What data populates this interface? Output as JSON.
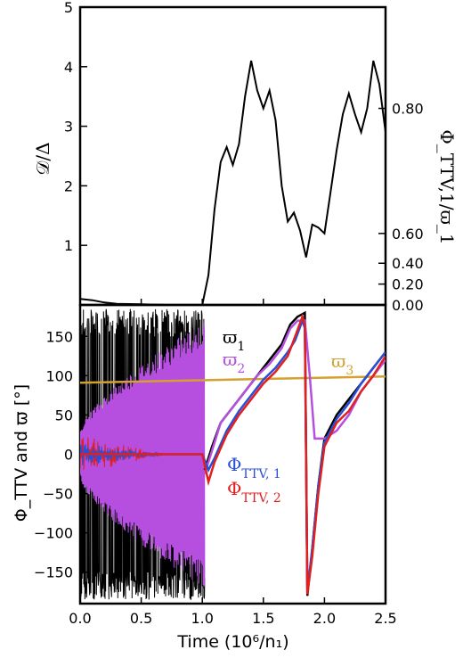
{
  "chart_data": [
    {
      "type": "line",
      "panel": "top",
      "ylabel": "𝒟/Δ",
      "ylabel_right": "Φ_TTV,1/ϖ_1",
      "ylim": [
        0,
        5
      ],
      "xlim": [
        0,
        2.5
      ],
      "y_ticks": [
        "1",
        "2",
        "3",
        "4",
        "5"
      ],
      "y_ticks_right": [
        "0.00",
        "0.20",
        "0.40",
        "0.60",
        "0.80"
      ],
      "y_ticks_right_pos": [
        0.0,
        0.35,
        0.7,
        1.2,
        3.3
      ],
      "series": [
        {
          "color": "#000000",
          "x": [
            0.0,
            0.1,
            0.2,
            0.3,
            0.5,
            0.7,
            0.9,
            1.0,
            1.05,
            1.1,
            1.15,
            1.2,
            1.25,
            1.3,
            1.35,
            1.4,
            1.45,
            1.5,
            1.55,
            1.6,
            1.65,
            1.7,
            1.75,
            1.8,
            1.85,
            1.9,
            1.95,
            2.0,
            2.05,
            2.1,
            2.15,
            2.2,
            2.25,
            2.3,
            2.35,
            2.4,
            2.45,
            2.5
          ],
          "y": [
            0.1,
            0.08,
            0.04,
            0.02,
            0.01,
            0.0,
            0.0,
            0.0,
            0.5,
            1.6,
            2.4,
            2.65,
            2.35,
            2.7,
            3.5,
            4.1,
            3.6,
            3.3,
            3.6,
            3.1,
            2.0,
            1.4,
            1.55,
            1.25,
            0.8,
            1.35,
            1.3,
            1.2,
            1.9,
            2.6,
            3.2,
            3.55,
            3.2,
            2.9,
            3.3,
            4.1,
            3.7,
            2.9
          ]
        }
      ]
    },
    {
      "type": "line",
      "panel": "bottom",
      "xlabel": "Time (10⁶/n₁)",
      "ylabel": "Φ_TTV and ϖ [°]",
      "xlim": [
        0,
        2.5
      ],
      "ylim": [
        -190,
        190
      ],
      "x_ticks": [
        "0.0",
        "0.5",
        "1.0",
        "1.5",
        "2.0",
        "2.5"
      ],
      "y_ticks": [
        "150",
        "100",
        "50",
        "0",
        "−50",
        "−100",
        "−150"
      ],
      "annotations": [
        {
          "text": "ϖ",
          "sub": "1",
          "color": "#000000"
        },
        {
          "text": "ϖ",
          "sub": "2",
          "color": "#b64ee0"
        },
        {
          "text": "ϖ",
          "sub": "3",
          "color": "#d4a030"
        },
        {
          "text": "Φ",
          "sub": "TTV, 1",
          "color": "#2a4fd6"
        },
        {
          "text": "Φ",
          "sub": "TTV, 2",
          "color": "#e02020"
        }
      ],
      "series": [
        {
          "name": "ϖ_3",
          "color": "#d4a030",
          "x": [
            0.0,
            2.5
          ],
          "y": [
            91,
            99
          ]
        },
        {
          "name": "ϖ_1",
          "color": "#000000",
          "x": [
            1.02,
            1.08,
            1.15,
            1.25,
            1.35,
            1.45,
            1.55,
            1.65,
            1.72,
            1.78,
            1.84,
            1.86,
            1.9,
            1.95,
            2.0,
            2.1,
            2.2,
            2.3,
            2.4,
            2.5
          ],
          "y": [
            -20,
            10,
            40,
            60,
            80,
            100,
            120,
            140,
            165,
            175,
            180,
            -180,
            -120,
            -40,
            20,
            50,
            70,
            90,
            110,
            130
          ]
        },
        {
          "name": "ϖ_2",
          "color": "#b64ee0",
          "x": [
            1.02,
            1.08,
            1.15,
            1.25,
            1.35,
            1.45,
            1.55,
            1.65,
            1.72,
            1.78,
            1.84,
            1.88,
            1.92,
            2.0,
            2.1,
            2.2,
            2.3,
            2.4,
            2.5
          ],
          "y": [
            -25,
            5,
            40,
            60,
            80,
            100,
            115,
            135,
            160,
            170,
            170,
            100,
            20,
            20,
            30,
            50,
            80,
            100,
            120
          ]
        },
        {
          "name": "Φ_TTV,1",
          "color": "#2a4fd6",
          "x": [
            0.0,
            1.0,
            1.05,
            1.1,
            1.2,
            1.3,
            1.4,
            1.5,
            1.6,
            1.7,
            1.76,
            1.82,
            1.84,
            1.86,
            1.9,
            1.95,
            2.0,
            2.1,
            2.2,
            2.3,
            2.4,
            2.5
          ],
          "y": [
            0,
            0,
            -20,
            -5,
            30,
            55,
            75,
            95,
            110,
            130,
            145,
            170,
            160,
            -175,
            -120,
            -40,
            15,
            45,
            65,
            90,
            110,
            130
          ]
        },
        {
          "name": "Φ_TTV,2",
          "color": "#e02020",
          "x": [
            0.0,
            1.0,
            1.05,
            1.1,
            1.2,
            1.3,
            1.4,
            1.5,
            1.6,
            1.7,
            1.76,
            1.82,
            1.84,
            1.86,
            1.9,
            1.95,
            2.0,
            2.1,
            2.2,
            2.3,
            2.4,
            2.5
          ],
          "y": [
            0,
            0,
            -35,
            -10,
            25,
            50,
            70,
            90,
            105,
            125,
            150,
            175,
            165,
            -178,
            -130,
            -50,
            10,
            40,
            55,
            80,
            100,
            125
          ]
        }
      ]
    }
  ]
}
